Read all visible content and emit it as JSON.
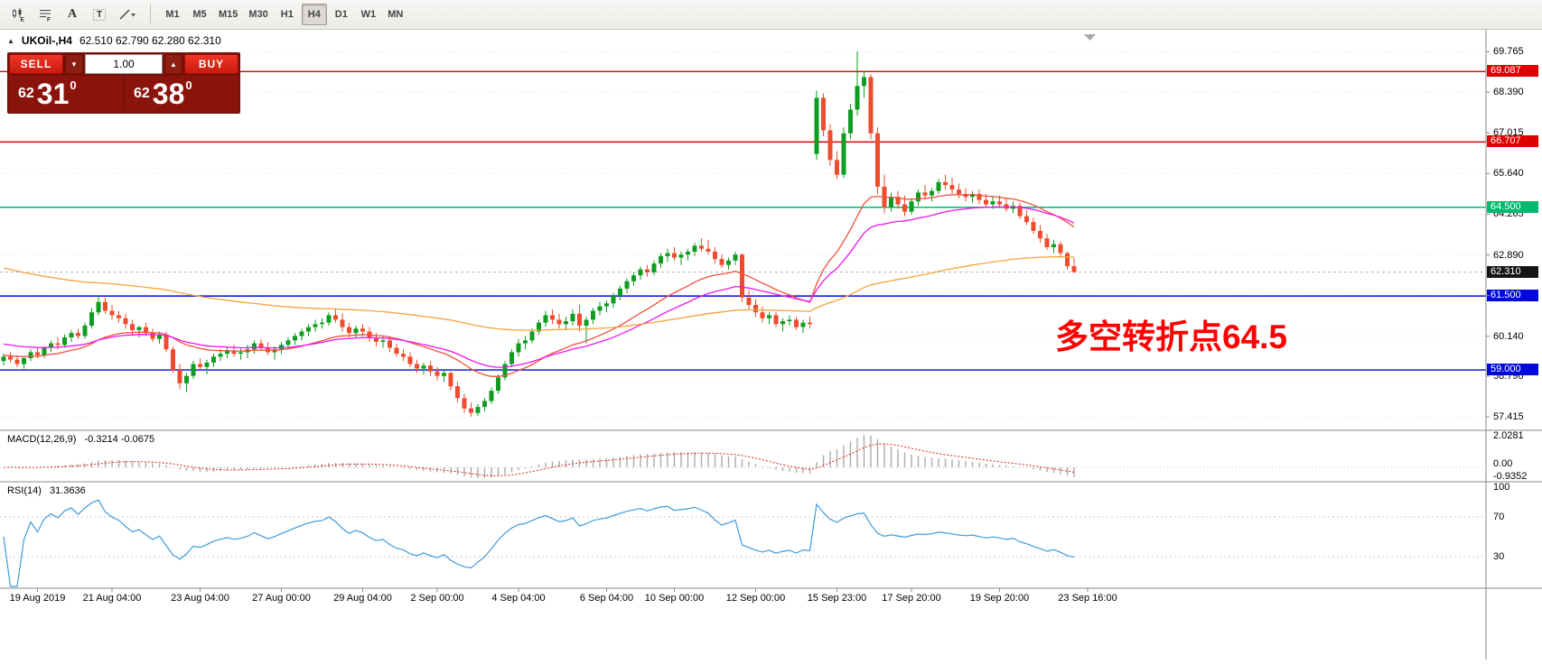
{
  "toolbar": {
    "tools": [
      {
        "name": "chart-type-candles-icon",
        "glyph": "candles"
      },
      {
        "name": "indicators-grid-icon",
        "glyph": "lines"
      },
      {
        "name": "text-label-icon",
        "glyph": "A"
      },
      {
        "name": "text-box-icon",
        "glyph": "T"
      },
      {
        "name": "trendline-tools-icon",
        "glyph": "slash"
      }
    ],
    "timeframes": [
      "M1",
      "M5",
      "M15",
      "M30",
      "H1",
      "H4",
      "D1",
      "W1",
      "MN"
    ],
    "active_timeframe": "H4"
  },
  "header": {
    "symbol": "UKOil-,H4",
    "ohlc": "62.510 62.790 62.280 62.310"
  },
  "icons": {
    "collapse_panel": "▲",
    "dropdown": "▼",
    "spin_up": "▲",
    "shift_marker": "▽"
  },
  "trade_panel": {
    "sell_label": "SELL",
    "buy_label": "BUY",
    "volume": "1.00",
    "bid": {
      "prefix": "62",
      "big": "31",
      "sup": "0"
    },
    "ask": {
      "prefix": "62",
      "big": "38",
      "sup": "0"
    }
  },
  "annotation": {
    "text": "多空转折点64.5",
    "color": "#FF0000"
  },
  "price_axis": {
    "ticks": [
      "69.765",
      "68.390",
      "67.015",
      "65.640",
      "64.265",
      "62.890",
      "61.515",
      "60.140",
      "58.790",
      "57.415"
    ],
    "badges": [
      {
        "text": "69.087",
        "color": "#dc0000"
      },
      {
        "text": "66.707",
        "color": "#dc0000"
      },
      {
        "text": "64.500",
        "color": "#00b86e"
      },
      {
        "text": "62.310",
        "color": "#141414"
      },
      {
        "text": "61.500",
        "color": "#0008dc"
      },
      {
        "text": "59.000",
        "color": "#0008dc"
      }
    ]
  },
  "macd": {
    "name": "MACD(12,26,9)",
    "values": "-0.3214 -0.0675",
    "fast": 12,
    "slow": 26,
    "signal": 9,
    "axis_labels": [
      "2.0281",
      "0.00",
      "-0.9352"
    ]
  },
  "rsi": {
    "name": "RSI(14)",
    "value": "31.3636",
    "period": 14,
    "axis_labels": [
      100,
      70,
      30
    ],
    "level_lines": [
      70,
      30
    ]
  },
  "chart_data": {
    "type": "candlestick",
    "symbol": "UKOil-",
    "timeframe": "H4",
    "visible_price_range": [
      56.96,
      70.5
    ],
    "current_price": 62.31,
    "up_color": "#0e9d20",
    "down_color": "#ef4b2e",
    "hlines": [
      {
        "price": 69.087,
        "color": "#dc0000"
      },
      {
        "price": 66.707,
        "color": "#dc0000"
      },
      {
        "price": 64.5,
        "color": "#00b86e"
      },
      {
        "price": 61.5,
        "color": "#0008dc"
      },
      {
        "price": 59.0,
        "color": "#0008dc"
      }
    ],
    "moving_averages": [
      {
        "period": 21,
        "method": "ema",
        "seed": 59.5,
        "color": "#f0503c"
      },
      {
        "period": 34,
        "method": "ema",
        "seed": 59.9,
        "color": "#ee15ee"
      },
      {
        "period": 120,
        "method": "ema",
        "seed": 62.5,
        "color": "#f2a33c"
      }
    ],
    "time_labels": [
      {
        "t": "19 Aug 2019",
        "i": 5
      },
      {
        "t": "21 Aug 04:00",
        "i": 16
      },
      {
        "t": "23 Aug 04:00",
        "i": 29
      },
      {
        "t": "27 Aug 00:00",
        "i": 41
      },
      {
        "t": "29 Aug 04:00",
        "i": 53
      },
      {
        "t": "2 Sep 00:00",
        "i": 64
      },
      {
        "t": "4 Sep 04:00",
        "i": 76
      },
      {
        "t": "6 Sep 04:00",
        "i": 89
      },
      {
        "t": "10 Sep 00:00",
        "i": 99
      },
      {
        "t": "12 Sep 00:00",
        "i": 111
      },
      {
        "t": "15 Sep 23:00",
        "i": 123
      },
      {
        "t": "17 Sep 20:00",
        "i": 134
      },
      {
        "t": "19 Sep 20:00",
        "i": 147
      },
      {
        "t": "23 Sep 16:00",
        "i": 160
      }
    ],
    "candles": [
      [
        59.3,
        59.55,
        59.15,
        59.45
      ],
      [
        59.45,
        59.6,
        59.25,
        59.35
      ],
      [
        59.35,
        59.5,
        59.1,
        59.2
      ],
      [
        59.2,
        59.45,
        59.05,
        59.4
      ],
      [
        59.4,
        59.7,
        59.3,
        59.6
      ],
      [
        59.6,
        59.75,
        59.4,
        59.5
      ],
      [
        59.5,
        59.8,
        59.4,
        59.75
      ],
      [
        59.75,
        60.0,
        59.6,
        59.9
      ],
      [
        59.9,
        60.1,
        59.7,
        59.85
      ],
      [
        59.85,
        60.2,
        59.75,
        60.1
      ],
      [
        60.1,
        60.35,
        59.95,
        60.25
      ],
      [
        60.25,
        60.4,
        60.05,
        60.15
      ],
      [
        60.15,
        60.6,
        60.05,
        60.5
      ],
      [
        60.5,
        61.1,
        60.4,
        60.95
      ],
      [
        60.95,
        61.5,
        60.85,
        61.3
      ],
      [
        61.3,
        61.45,
        60.9,
        61.0
      ],
      [
        61.0,
        61.2,
        60.7,
        60.85
      ],
      [
        60.85,
        61.0,
        60.6,
        60.75
      ],
      [
        60.75,
        60.9,
        60.4,
        60.55
      ],
      [
        60.55,
        60.7,
        60.2,
        60.35
      ],
      [
        60.35,
        60.5,
        60.1,
        60.45
      ],
      [
        60.45,
        60.6,
        60.15,
        60.25
      ],
      [
        60.25,
        60.4,
        59.95,
        60.05
      ],
      [
        60.05,
        60.3,
        59.9,
        60.2
      ],
      [
        60.2,
        60.3,
        59.6,
        59.7
      ],
      [
        59.7,
        59.8,
        58.9,
        59.0
      ],
      [
        59.0,
        59.2,
        58.35,
        58.55
      ],
      [
        58.55,
        58.9,
        58.25,
        58.8
      ],
      [
        58.8,
        59.3,
        58.7,
        59.2
      ],
      [
        59.2,
        59.4,
        59.0,
        59.1
      ],
      [
        59.1,
        59.35,
        58.85,
        59.25
      ],
      [
        59.25,
        59.55,
        59.1,
        59.45
      ],
      [
        59.45,
        59.7,
        59.3,
        59.55
      ],
      [
        59.55,
        59.8,
        59.4,
        59.65
      ],
      [
        59.65,
        59.85,
        59.45,
        59.55
      ],
      [
        59.55,
        59.75,
        59.35,
        59.6
      ],
      [
        59.6,
        59.85,
        59.4,
        59.7
      ],
      [
        59.7,
        60.0,
        59.55,
        59.9
      ],
      [
        59.9,
        60.05,
        59.65,
        59.75
      ],
      [
        59.75,
        59.95,
        59.5,
        59.6
      ],
      [
        59.6,
        59.8,
        59.35,
        59.7
      ],
      [
        59.7,
        59.95,
        59.55,
        59.85
      ],
      [
        59.85,
        60.1,
        59.7,
        60.0
      ],
      [
        60.0,
        60.25,
        59.85,
        60.15
      ],
      [
        60.15,
        60.4,
        60.0,
        60.3
      ],
      [
        60.3,
        60.55,
        60.15,
        60.45
      ],
      [
        60.45,
        60.7,
        60.3,
        60.55
      ],
      [
        60.55,
        60.75,
        60.4,
        60.6
      ],
      [
        60.6,
        60.95,
        60.5,
        60.85
      ],
      [
        60.85,
        61.05,
        60.6,
        60.7
      ],
      [
        60.7,
        60.9,
        60.3,
        60.45
      ],
      [
        60.45,
        60.6,
        60.1,
        60.25
      ],
      [
        60.25,
        60.5,
        60.1,
        60.4
      ],
      [
        60.4,
        60.55,
        60.15,
        60.3
      ],
      [
        60.3,
        60.45,
        59.95,
        60.1
      ],
      [
        60.1,
        60.25,
        59.8,
        59.95
      ],
      [
        59.95,
        60.15,
        59.75,
        60.0
      ],
      [
        60.0,
        60.1,
        59.6,
        59.75
      ],
      [
        59.75,
        59.9,
        59.45,
        59.55
      ],
      [
        59.55,
        59.7,
        59.3,
        59.45
      ],
      [
        59.45,
        59.6,
        59.1,
        59.2
      ],
      [
        59.2,
        59.35,
        58.9,
        59.05
      ],
      [
        59.05,
        59.25,
        58.85,
        59.15
      ],
      [
        59.15,
        59.3,
        58.8,
        58.95
      ],
      [
        58.95,
        59.1,
        58.65,
        58.8
      ],
      [
        58.8,
        59.0,
        58.6,
        58.9
      ],
      [
        58.9,
        58.95,
        58.3,
        58.45
      ],
      [
        58.45,
        58.6,
        57.9,
        58.05
      ],
      [
        58.05,
        58.2,
        57.55,
        57.7
      ],
      [
        57.7,
        57.9,
        57.42,
        57.55
      ],
      [
        57.55,
        57.85,
        57.45,
        57.75
      ],
      [
        57.75,
        58.05,
        57.6,
        57.95
      ],
      [
        57.95,
        58.4,
        57.85,
        58.3
      ],
      [
        58.3,
        58.85,
        58.2,
        58.75
      ],
      [
        58.75,
        59.3,
        58.65,
        59.2
      ],
      [
        59.2,
        59.7,
        59.1,
        59.6
      ],
      [
        59.6,
        60.05,
        59.45,
        59.9
      ],
      [
        59.9,
        60.15,
        59.7,
        60.0
      ],
      [
        60.0,
        60.4,
        59.9,
        60.3
      ],
      [
        60.3,
        60.7,
        60.2,
        60.6
      ],
      [
        60.6,
        61.0,
        60.45,
        60.85
      ],
      [
        60.85,
        61.05,
        60.55,
        60.7
      ],
      [
        60.7,
        60.9,
        60.4,
        60.55
      ],
      [
        60.55,
        60.8,
        60.35,
        60.65
      ],
      [
        60.65,
        61.05,
        60.5,
        60.9
      ],
      [
        60.9,
        61.2,
        60.3,
        60.5
      ],
      [
        60.5,
        60.8,
        59.9,
        60.7
      ],
      [
        60.7,
        61.1,
        60.55,
        61.0
      ],
      [
        61.0,
        61.3,
        60.85,
        61.15
      ],
      [
        61.15,
        61.35,
        60.95,
        61.25
      ],
      [
        61.25,
        61.6,
        61.1,
        61.5
      ],
      [
        61.5,
        61.85,
        61.35,
        61.75
      ],
      [
        61.75,
        62.1,
        61.6,
        62.0
      ],
      [
        62.0,
        62.3,
        61.85,
        62.2
      ],
      [
        62.2,
        62.5,
        62.05,
        62.4
      ],
      [
        62.4,
        62.55,
        62.15,
        62.3
      ],
      [
        62.3,
        62.7,
        62.2,
        62.6
      ],
      [
        62.6,
        62.95,
        62.45,
        62.85
      ],
      [
        62.85,
        63.1,
        62.65,
        62.95
      ],
      [
        62.95,
        63.15,
        62.7,
        62.8
      ],
      [
        62.8,
        63.0,
        62.55,
        62.9
      ],
      [
        62.9,
        63.1,
        62.7,
        63.0
      ],
      [
        63.0,
        63.3,
        62.85,
        63.2
      ],
      [
        63.2,
        63.45,
        63.0,
        63.1
      ],
      [
        63.1,
        63.4,
        62.9,
        63.0
      ],
      [
        63.0,
        63.15,
        62.6,
        62.75
      ],
      [
        62.75,
        62.9,
        62.45,
        62.55
      ],
      [
        62.55,
        62.8,
        62.4,
        62.7
      ],
      [
        62.7,
        63.0,
        62.55,
        62.9
      ],
      [
        62.9,
        62.95,
        61.3,
        61.45
      ],
      [
        61.45,
        61.7,
        61.05,
        61.2
      ],
      [
        61.2,
        61.4,
        60.8,
        60.95
      ],
      [
        60.95,
        61.15,
        60.6,
        60.75
      ],
      [
        60.75,
        60.95,
        60.55,
        60.85
      ],
      [
        60.85,
        60.95,
        60.45,
        60.55
      ],
      [
        60.55,
        60.75,
        60.3,
        60.65
      ],
      [
        60.65,
        60.85,
        60.5,
        60.7
      ],
      [
        60.7,
        60.8,
        60.35,
        60.45
      ],
      [
        60.45,
        60.7,
        60.25,
        60.6
      ],
      [
        60.6,
        60.8,
        60.4,
        60.55
      ],
      [
        66.3,
        68.45,
        66.1,
        68.2
      ],
      [
        68.2,
        68.35,
        66.9,
        67.1
      ],
      [
        67.1,
        67.3,
        65.9,
        66.1
      ],
      [
        66.1,
        66.4,
        65.45,
        65.6
      ],
      [
        65.6,
        67.2,
        65.5,
        67.0
      ],
      [
        67.0,
        68.0,
        66.8,
        67.8
      ],
      [
        67.8,
        69.77,
        67.6,
        68.6
      ],
      [
        68.6,
        69.1,
        68.2,
        68.9
      ],
      [
        68.9,
        69.0,
        66.8,
        67.0
      ],
      [
        67.0,
        67.2,
        64.95,
        65.2
      ],
      [
        65.2,
        65.6,
        64.3,
        64.5
      ],
      [
        64.5,
        65.0,
        64.35,
        64.85
      ],
      [
        64.85,
        65.05,
        64.45,
        64.6
      ],
      [
        64.6,
        64.9,
        64.2,
        64.35
      ],
      [
        64.35,
        64.8,
        64.25,
        64.7
      ],
      [
        64.7,
        65.1,
        64.55,
        65.0
      ],
      [
        65.0,
        65.25,
        64.75,
        64.9
      ],
      [
        64.9,
        65.15,
        64.7,
        65.05
      ],
      [
        65.05,
        65.45,
        64.95,
        65.35
      ],
      [
        65.35,
        65.6,
        65.1,
        65.25
      ],
      [
        65.25,
        65.5,
        64.95,
        65.1
      ],
      [
        65.1,
        65.3,
        64.8,
        64.95
      ],
      [
        64.95,
        65.15,
        64.7,
        64.85
      ],
      [
        64.85,
        65.05,
        64.65,
        64.95
      ],
      [
        64.95,
        65.1,
        64.6,
        64.75
      ],
      [
        64.75,
        64.95,
        64.5,
        64.6
      ],
      [
        64.6,
        64.85,
        64.45,
        64.7
      ],
      [
        64.7,
        64.9,
        64.5,
        64.6
      ],
      [
        64.6,
        64.8,
        64.35,
        64.45
      ],
      [
        64.45,
        64.7,
        64.3,
        64.55
      ],
      [
        64.55,
        64.65,
        64.1,
        64.2
      ],
      [
        64.2,
        64.4,
        63.9,
        64.0
      ],
      [
        64.0,
        64.15,
        63.6,
        63.7
      ],
      [
        63.7,
        63.9,
        63.3,
        63.45
      ],
      [
        63.45,
        63.6,
        63.05,
        63.15
      ],
      [
        63.15,
        63.4,
        62.95,
        63.25
      ],
      [
        63.25,
        63.35,
        62.8,
        62.95
      ],
      [
        62.95,
        63.0,
        62.4,
        62.51
      ],
      [
        62.51,
        62.79,
        62.28,
        62.31
      ]
    ]
  }
}
